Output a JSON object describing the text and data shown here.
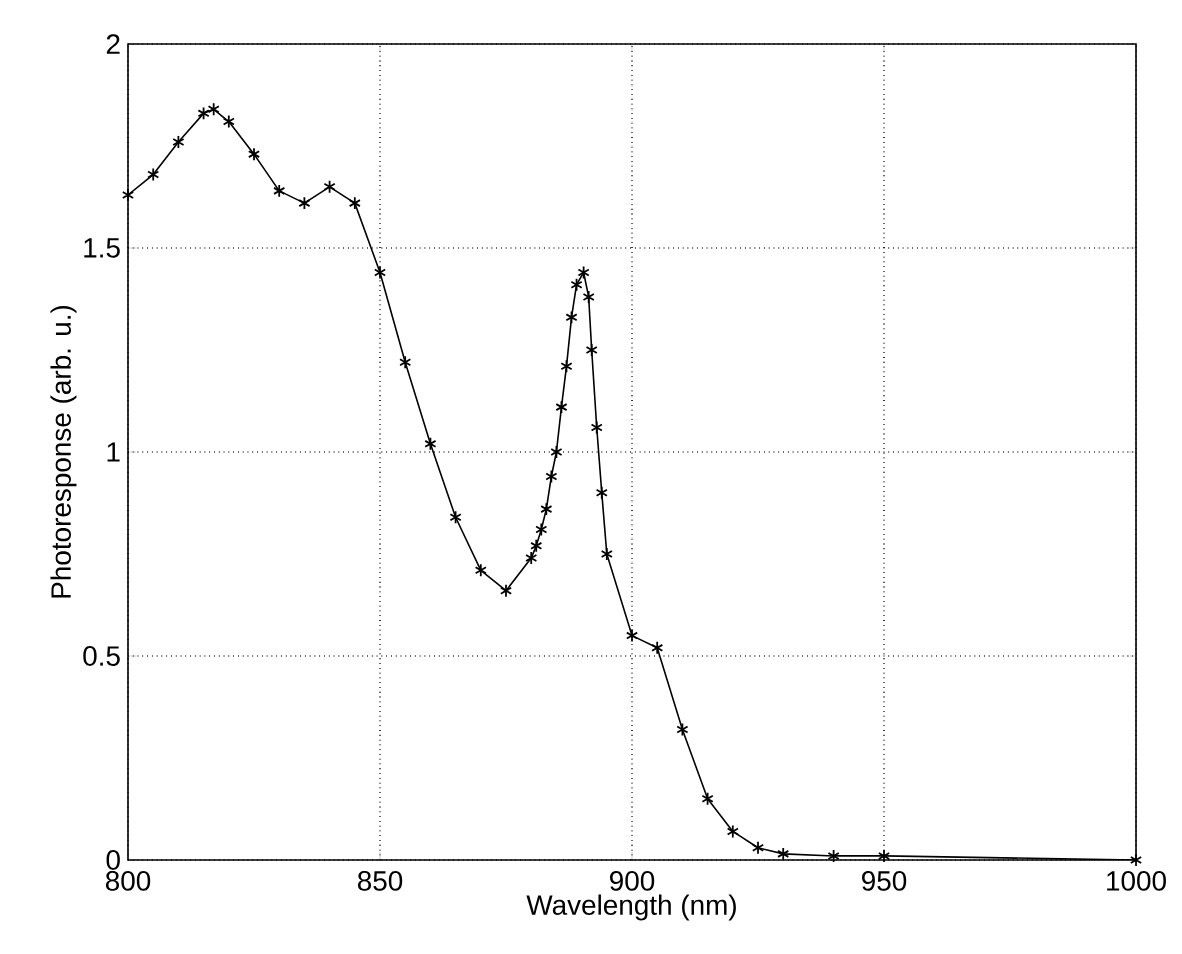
{
  "chart_data": {
    "type": "line",
    "xlabel": "Wavelength  (nm)",
    "ylabel": "Photoresponse  (arb. u.)",
    "x": [
      800,
      805,
      810,
      815,
      817,
      820,
      825,
      830,
      835,
      840,
      845,
      850,
      855,
      860,
      865,
      870,
      875,
      880,
      881,
      882,
      883,
      884,
      885,
      886,
      887,
      888,
      889,
      890.4,
      891.4,
      892,
      893,
      894,
      895,
      900,
      905,
      910,
      915,
      920,
      925,
      930,
      940,
      950,
      1000
    ],
    "series": [
      {
        "color": "#000000",
        "values": [
          1.63,
          1.68,
          1.76,
          1.83,
          1.84,
          1.81,
          1.73,
          1.64,
          1.61,
          1.65,
          1.61,
          1.44,
          1.22,
          1.02,
          0.84,
          0.71,
          0.66,
          0.74,
          0.77,
          0.81,
          0.86,
          0.94,
          1.0,
          1.11,
          1.21,
          1.33,
          1.41,
          1.44,
          1.38,
          1.25,
          1.06,
          0.9,
          0.75,
          0.55,
          0.52,
          0.32,
          0.15,
          0.07,
          0.03,
          0.015,
          0.01,
          0.01,
          0
        ]
      }
    ],
    "xlim": [
      800,
      1000
    ],
    "ylim": [
      0,
      2
    ],
    "xticks": [
      800,
      850,
      900,
      950,
      1000
    ],
    "yticks": [
      0,
      0.5,
      1,
      1.5,
      2
    ],
    "grid": true,
    "marker": "cross",
    "line_style": "solid"
  }
}
